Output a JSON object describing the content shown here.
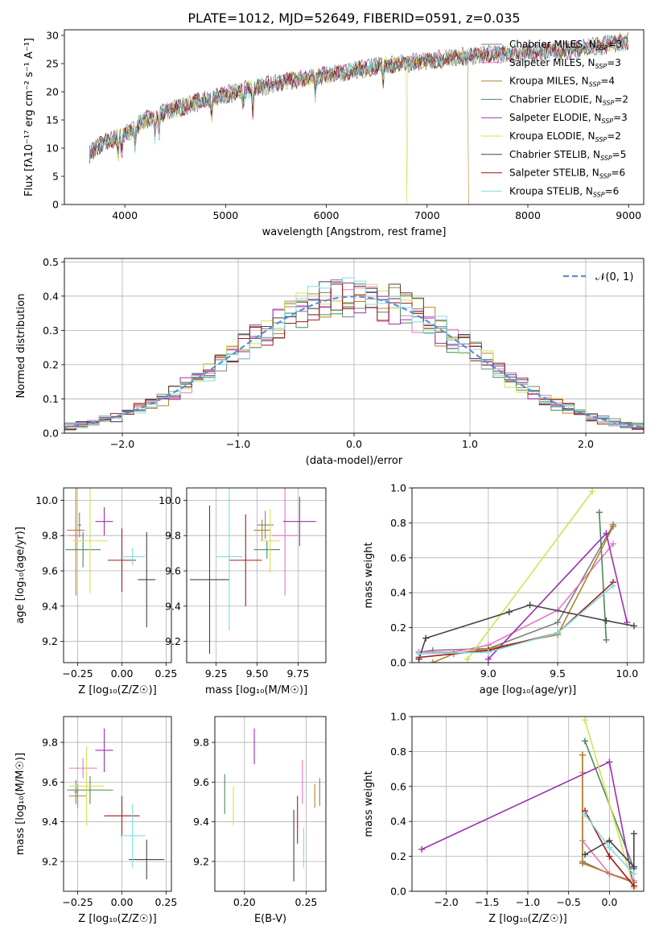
{
  "figure_title": "PLATE=1012, MJD=52649, FIBERID=0591, z=0.035",
  "models": [
    {
      "name": "Chabrier MILES",
      "nssp": "3",
      "color": "#7f7f7f"
    },
    {
      "name": "Salpeter MILES",
      "nssp": "3",
      "color": "#e377c2"
    },
    {
      "name": "Kroupa MILES",
      "nssp": "4",
      "color": "#b5822b"
    },
    {
      "name": "Chabrier ELODIE",
      "nssp": "2",
      "color": "#4c8a5a"
    },
    {
      "name": "Salpeter ELODIE",
      "nssp": "3",
      "color": "#9b30b0"
    },
    {
      "name": "Kroupa ELODIE",
      "nssp": "2",
      "color": "#d4e157"
    },
    {
      "name": "Chabrier STELIB",
      "nssp": "5",
      "color": "#444444"
    },
    {
      "name": "Salpeter STELIB",
      "nssp": "6",
      "color": "#a01a1a"
    },
    {
      "name": "Kroupa STELIB",
      "nssp": "6",
      "color": "#7fdde0"
    }
  ],
  "chart_data": [
    {
      "id": "spectrum",
      "type": "line",
      "xlabel": "wavelength [Angstrom, rest frame]",
      "ylabel": "Flux [fλ10⁻¹⁷ erg cm⁻² s⁻¹ A⁻¹]",
      "xlim": [
        3400,
        9150
      ],
      "ylim": [
        0,
        31
      ],
      "xticks": [
        4000,
        5000,
        6000,
        7000,
        8000,
        9000
      ],
      "yticks": [
        0,
        5,
        10,
        15,
        20,
        25,
        30
      ],
      "continuum": [
        [
          3650,
          9
        ],
        [
          3800,
          11
        ],
        [
          4000,
          12.5
        ],
        [
          4200,
          15
        ],
        [
          4500,
          17
        ],
        [
          5000,
          19.5
        ],
        [
          5500,
          21.5
        ],
        [
          6000,
          23
        ],
        [
          6500,
          24.5
        ],
        [
          7000,
          25.5
        ],
        [
          7500,
          26.5
        ],
        [
          8000,
          27
        ],
        [
          8500,
          27.5
        ],
        [
          9000,
          29
        ]
      ],
      "dropouts": [
        {
          "model": "Kroupa ELODIE",
          "x": 6800
        },
        {
          "model": "Kroupa MILES",
          "x": 7420
        }
      ],
      "grid": false,
      "legend": "top-right"
    },
    {
      "id": "residuals",
      "type": "histogram",
      "xlabel": "(data-model)/error",
      "ylabel": "Normed distribution",
      "xlim": [
        -2.5,
        2.5
      ],
      "ylim": [
        0,
        0.51
      ],
      "xticks": [
        -2,
        -1,
        0,
        1,
        2
      ],
      "yticks": [
        0,
        0.1,
        0.2,
        0.3,
        0.4,
        0.5
      ],
      "bin_width": 0.1,
      "reference_label": "𝒩(0, 1)",
      "reference_color": "#5b8fd6",
      "grid": true,
      "legend": "top-right"
    },
    {
      "id": "age-vs-z",
      "type": "errorbar",
      "xlabel": "Z [log₁₀(Z/Z☉)]",
      "ylabel": "age  [log₁₀(age/yr)]",
      "xlim": [
        -0.33,
        0.28
      ],
      "ylim": [
        9.08,
        10.07
      ],
      "xticks": [
        -0.25,
        0.0,
        0.25
      ],
      "yticks": [
        9.2,
        9.4,
        9.6,
        9.8,
        10.0
      ],
      "points": [
        {
          "model": "Chabrier MILES",
          "x": -0.24,
          "xerr": 0.01,
          "y": 9.86,
          "yerr": 0.07
        },
        {
          "model": "Salpeter MILES",
          "x": -0.26,
          "xerr": 0.04,
          "y": 9.8,
          "yerr": 0.09
        },
        {
          "model": "Kroupa MILES",
          "x": -0.26,
          "xerr": 0.05,
          "y": 9.83,
          "yerr": 0.37
        },
        {
          "model": "Chabrier ELODIE",
          "x": -0.22,
          "xerr": 0.1,
          "y": 9.72,
          "yerr": 0.1
        },
        {
          "model": "Salpeter ELODIE",
          "x": -0.1,
          "xerr": 0.05,
          "y": 9.88,
          "yerr": 0.08
        },
        {
          "model": "Kroupa ELODIE",
          "x": -0.18,
          "xerr": 0.1,
          "y": 9.77,
          "yerr": 0.3
        },
        {
          "model": "Chabrier STELIB",
          "x": 0.14,
          "xerr": 0.05,
          "y": 9.55,
          "yerr": 0.27
        },
        {
          "model": "Salpeter STELIB",
          "x": 0.0,
          "xerr": 0.08,
          "y": 9.66,
          "yerr": 0.18
        },
        {
          "model": "Kroupa STELIB",
          "x": 0.06,
          "xerr": 0.07,
          "y": 9.68,
          "yerr": 0.05
        }
      ],
      "grid": true
    },
    {
      "id": "age-vs-mass",
      "type": "errorbar",
      "xlabel": "mass [log₁₀(M/M☉)]",
      "ylabel": "",
      "xlim": [
        9.07,
        9.92
      ],
      "ylim": [
        9.08,
        10.07
      ],
      "xticks": [
        9.25,
        9.5,
        9.75
      ],
      "yticks": [
        9.2,
        9.4,
        9.6,
        9.8,
        10.0
      ],
      "points": [
        {
          "model": "Chabrier MILES",
          "x": 9.55,
          "xerr": 0.05,
          "y": 9.86,
          "yerr": 0.08
        },
        {
          "model": "Salpeter MILES",
          "x": 9.67,
          "xerr": 0.08,
          "y": 9.8,
          "yerr": 0.34
        },
        {
          "model": "Kroupa MILES",
          "x": 9.53,
          "xerr": 0.05,
          "y": 9.83,
          "yerr": 0.06
        },
        {
          "model": "Chabrier ELODIE",
          "x": 9.56,
          "xerr": 0.08,
          "y": 9.72,
          "yerr": 0.05
        },
        {
          "model": "Salpeter ELODIE",
          "x": 9.76,
          "xerr": 0.1,
          "y": 9.88,
          "yerr": 0.14
        },
        {
          "model": "Kroupa ELODIE",
          "x": 9.58,
          "xerr": 0.06,
          "y": 9.77,
          "yerr": 0.18
        },
        {
          "model": "Chabrier STELIB",
          "x": 9.21,
          "xerr": 0.12,
          "y": 9.55,
          "yerr": 0.42
        },
        {
          "model": "Salpeter STELIB",
          "x": 9.43,
          "xerr": 0.1,
          "y": 9.66,
          "yerr": 0.26
        },
        {
          "model": "Kroupa STELIB",
          "x": 9.33,
          "xerr": 0.08,
          "y": 9.68,
          "yerr": 0.42
        }
      ],
      "grid": true
    },
    {
      "id": "weight-vs-age",
      "type": "line",
      "xlabel": "age  [log₁₀(age/yr)]",
      "ylabel": "mass weight",
      "xlim": [
        8.45,
        10.12
      ],
      "ylim": [
        0,
        1.0
      ],
      "xticks": [
        9.0,
        9.5,
        10.0
      ],
      "yticks": [
        0.0,
        0.2,
        0.4,
        0.6,
        0.8,
        1.0
      ],
      "series": [
        {
          "model": "Chabrier MILES",
          "x": [
            8.5,
            8.6,
            9.0,
            9.5,
            9.9
          ],
          "y": [
            0.06,
            0.07,
            0.08,
            0.23,
            0.79
          ]
        },
        {
          "model": "Salpeter MILES",
          "x": [
            8.5,
            8.75,
            9.0,
            9.5,
            9.9
          ],
          "y": [
            0.06,
            0.06,
            0.1,
            0.3,
            0.68
          ]
        },
        {
          "model": "Kroupa MILES",
          "x": [
            8.6,
            8.75,
            9.0,
            9.5,
            9.9
          ],
          "y": [
            0.0,
            0.05,
            0.08,
            0.16,
            0.78
          ]
        },
        {
          "model": "Chabrier ELODIE",
          "x": [
            9.8,
            9.85
          ],
          "y": [
            0.86,
            0.13
          ]
        },
        {
          "model": "Salpeter ELODIE",
          "x": [
            9.0,
            9.85,
            10.0
          ],
          "y": [
            0.02,
            0.74,
            0.23
          ]
        },
        {
          "model": "Kroupa ELODIE",
          "x": [
            8.85,
            9.75
          ],
          "y": [
            0.02,
            0.98
          ]
        },
        {
          "model": "Chabrier STELIB",
          "x": [
            8.5,
            8.55,
            9.15,
            9.3,
            9.85,
            10.05
          ],
          "y": [
            0.02,
            0.14,
            0.29,
            0.33,
            0.24,
            0.21
          ]
        },
        {
          "model": "Salpeter STELIB",
          "x": [
            8.5,
            9.0,
            9.5,
            9.9
          ],
          "y": [
            0.03,
            0.07,
            0.17,
            0.46
          ]
        },
        {
          "model": "Kroupa STELIB",
          "x": [
            8.5,
            9.0,
            9.5,
            9.9
          ],
          "y": [
            0.05,
            0.06,
            0.17,
            0.44
          ]
        }
      ],
      "grid": true
    },
    {
      "id": "mass-vs-z",
      "type": "errorbar",
      "xlabel": "Z [log₁₀(Z/Z☉)]",
      "ylabel": "mass [log₁₀(M/M☉)]",
      "xlim": [
        -0.33,
        0.28
      ],
      "ylim": [
        9.05,
        9.93
      ],
      "xticks": [
        -0.25,
        0.0,
        0.25
      ],
      "yticks": [
        9.2,
        9.4,
        9.6,
        9.8
      ],
      "points": [
        {
          "model": "Chabrier MILES",
          "x": -0.26,
          "xerr": 0.01,
          "y": 9.55,
          "yerr": 0.06
        },
        {
          "model": "Salpeter MILES",
          "x": -0.22,
          "xerr": 0.08,
          "y": 9.67,
          "yerr": 0.05
        },
        {
          "model": "Kroupa MILES",
          "x": -0.25,
          "xerr": 0.05,
          "y": 9.53,
          "yerr": 0.06
        },
        {
          "model": "Chabrier ELODIE",
          "x": -0.18,
          "xerr": 0.13,
          "y": 9.56,
          "yerr": 0.07
        },
        {
          "model": "Salpeter ELODIE",
          "x": -0.1,
          "xerr": 0.05,
          "y": 9.76,
          "yerr": 0.11
        },
        {
          "model": "Kroupa ELODIE",
          "x": -0.2,
          "xerr": 0.1,
          "y": 9.58,
          "yerr": 0.2
        },
        {
          "model": "Chabrier STELIB",
          "x": 0.14,
          "xerr": 0.1,
          "y": 9.21,
          "yerr": 0.1
        },
        {
          "model": "Salpeter STELIB",
          "x": 0.0,
          "xerr": 0.1,
          "y": 9.43,
          "yerr": 0.1
        },
        {
          "model": "Kroupa STELIB",
          "x": 0.06,
          "xerr": 0.07,
          "y": 9.33,
          "yerr": 0.16
        }
      ],
      "grid": true
    },
    {
      "id": "mass-vs-ebv",
      "type": "errorbar",
      "xlabel": "E(B-V)",
      "ylabel": "",
      "xlim": [
        0.176,
        0.266
      ],
      "ylim": [
        9.05,
        9.93
      ],
      "xticks": [
        0.2,
        0.25
      ],
      "yticks": [
        9.2,
        9.4,
        9.6,
        9.8
      ],
      "points": [
        {
          "model": "Chabrier MILES",
          "x": 0.261,
          "xerr": 0,
          "y": 9.55,
          "yerr": 0.07
        },
        {
          "model": "Salpeter MILES",
          "x": 0.247,
          "xerr": 0,
          "y": 9.6,
          "yerr": 0.11
        },
        {
          "model": "Kroupa MILES",
          "x": 0.257,
          "xerr": 0,
          "y": 9.53,
          "yerr": 0.06
        },
        {
          "model": "Chabrier ELODIE",
          "x": 0.184,
          "xerr": 0,
          "y": 9.54,
          "yerr": 0.1
        },
        {
          "model": "Salpeter ELODIE",
          "x": 0.208,
          "xerr": 0,
          "y": 9.78,
          "yerr": 0.09
        },
        {
          "model": "Kroupa ELODIE",
          "x": 0.191,
          "xerr": 0,
          "y": 9.48,
          "yerr": 0.1
        },
        {
          "model": "Chabrier STELIB",
          "x": 0.24,
          "xerr": 0,
          "y": 9.28,
          "yerr": 0.18
        },
        {
          "model": "Salpeter STELIB",
          "x": 0.243,
          "xerr": 0,
          "y": 9.41,
          "yerr": 0.12
        },
        {
          "model": "Kroupa STELIB",
          "x": 0.248,
          "xerr": 0,
          "y": 9.27,
          "yerr": 0.1
        }
      ],
      "grid": true
    },
    {
      "id": "weight-vs-z",
      "type": "line",
      "xlabel": "Z [log₁₀(Z/Z☉)]",
      "ylabel": "mass weight",
      "xlim": [
        -2.42,
        0.42
      ],
      "ylim": [
        0,
        1.0
      ],
      "xticks": [
        -2.0,
        -1.5,
        -1.0,
        -0.5,
        0.0
      ],
      "yticks": [
        0.0,
        0.2,
        0.4,
        0.6,
        0.8,
        1.0
      ],
      "series": [
        {
          "model": "Chabrier MILES",
          "x": [
            -0.33,
            -0.33,
            0.0,
            0.3
          ],
          "y": [
            0.78,
            0.17,
            0.1,
            0.05
          ]
        },
        {
          "model": "Salpeter MILES",
          "x": [
            -0.33,
            -0.33,
            0.0,
            0.3
          ],
          "y": [
            0.68,
            0.29,
            0.1,
            0.06
          ]
        },
        {
          "model": "Kroupa MILES",
          "x": [
            -0.33,
            -0.33,
            -0.33,
            0.3
          ],
          "y": [
            0.78,
            0.16,
            0.16,
            0.05
          ]
        },
        {
          "model": "Chabrier ELODIE",
          "x": [
            -0.3,
            0.3
          ],
          "y": [
            0.86,
            0.13
          ]
        },
        {
          "model": "Salpeter ELODIE",
          "x": [
            -2.3,
            0.0,
            0.3
          ],
          "y": [
            0.24,
            0.74,
            0.02
          ]
        },
        {
          "model": "Kroupa ELODIE",
          "x": [
            -0.3,
            0.3
          ],
          "y": [
            0.98,
            0.02
          ]
        },
        {
          "model": "Chabrier STELIB",
          "x": [
            -0.3,
            0.0,
            0.3,
            0.3
          ],
          "y": [
            0.21,
            0.29,
            0.14,
            0.33
          ]
        },
        {
          "model": "Salpeter STELIB",
          "x": [
            -0.3,
            0.0,
            0.3
          ],
          "y": [
            0.46,
            0.2,
            0.03
          ]
        },
        {
          "model": "Kroupa STELIB",
          "x": [
            -0.3,
            0.0,
            0.3
          ],
          "y": [
            0.44,
            0.25,
            0.1
          ]
        }
      ],
      "grid": true
    }
  ]
}
